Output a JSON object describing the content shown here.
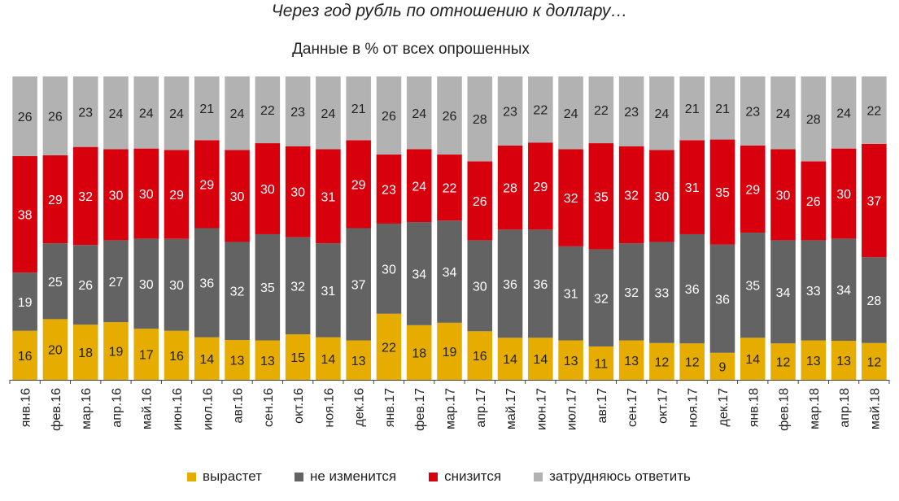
{
  "title": "Через год рубль по отношению к доллару…",
  "subtitle": "Данные в % от всех опрошенных",
  "colors": {
    "vyrastet": "#e6ac00",
    "ne_izmenitsya": "#636363",
    "snizitsya": "#d9000d",
    "zatrudnyayus": "#b2b2b2"
  },
  "chart_data": {
    "type": "bar",
    "stacked": true,
    "categories": [
      "янв.16",
      "фев.16",
      "мар.16",
      "апр.16",
      "май.16",
      "июн.16",
      "июл.16",
      "авг.16",
      "сен.16",
      "окт.16",
      "ноя.16",
      "дек.16",
      "янв.17",
      "фев.17",
      "мар.17",
      "апр.17",
      "май.17",
      "июн.17",
      "июл.17",
      "авг.17",
      "сен.17",
      "окт.17",
      "ноя.17",
      "дек.17",
      "янв.18",
      "фев.18",
      "мар.18",
      "апр.18",
      "май.18"
    ],
    "series": [
      {
        "name": "вырастет",
        "color": "#e6ac00",
        "values": [
          16,
          20,
          18,
          19,
          17,
          16,
          14,
          13,
          13,
          15,
          14,
          13,
          22,
          18,
          19,
          16,
          14,
          14,
          13,
          11,
          13,
          12,
          12,
          9,
          14,
          12,
          13,
          13,
          12
        ]
      },
      {
        "name": "не изменится",
        "color": "#636363",
        "values": [
          19,
          25,
          26,
          27,
          30,
          30,
          36,
          32,
          35,
          32,
          31,
          37,
          30,
          34,
          34,
          30,
          36,
          36,
          31,
          32,
          32,
          33,
          36,
          36,
          35,
          34,
          33,
          34,
          28
        ]
      },
      {
        "name": "снизится",
        "color": "#d9000d",
        "values": [
          38,
          29,
          32,
          30,
          30,
          29,
          29,
          30,
          30,
          30,
          31,
          29,
          23,
          24,
          22,
          26,
          28,
          29,
          32,
          35,
          32,
          30,
          31,
          35,
          29,
          30,
          26,
          30,
          37
        ]
      },
      {
        "name": "затрудняюсь ответить",
        "color": "#b2b2b2",
        "values": [
          26,
          26,
          23,
          24,
          24,
          24,
          21,
          24,
          22,
          23,
          24,
          21,
          26,
          24,
          26,
          28,
          23,
          22,
          24,
          22,
          23,
          24,
          21,
          21,
          23,
          24,
          28,
          24,
          22
        ]
      }
    ],
    "ylim": [
      0,
      100
    ],
    "grid": false,
    "legend_position": "bottom"
  }
}
